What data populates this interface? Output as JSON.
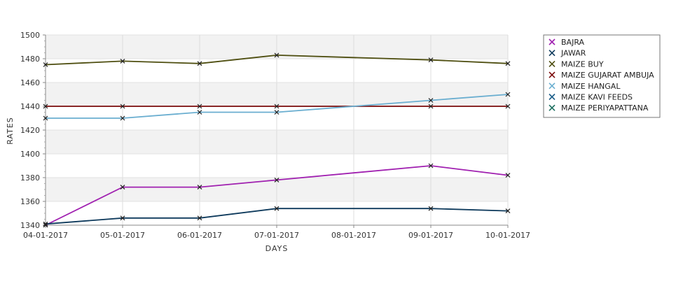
{
  "chart_data": {
    "type": "line",
    "xlabel": "DAYS",
    "ylabel": "RATES",
    "ylim": [
      1340,
      1500
    ],
    "yticks": [
      1340,
      1360,
      1380,
      1400,
      1420,
      1440,
      1460,
      1480,
      1500
    ],
    "x": [
      "04-01-2017",
      "05-01-2017",
      "06-01-2017",
      "07-01-2017",
      "08-01-2017",
      "09-01-2017",
      "10-01-2017"
    ],
    "grid": true,
    "legend_position": "right",
    "series": [
      {
        "name": "BAJRA",
        "color": "#a020b0",
        "points": [
          [
            0,
            1340
          ],
          [
            1,
            1372
          ],
          [
            2,
            1372
          ],
          [
            3,
            1378
          ],
          [
            5,
            1390
          ],
          [
            6,
            1382
          ]
        ]
      },
      {
        "name": "JAWAR",
        "color": "#0e3a5c",
        "points": [
          [
            0,
            1341
          ],
          [
            1,
            1346
          ],
          [
            2,
            1346
          ],
          [
            3,
            1354
          ],
          [
            5,
            1354
          ],
          [
            6,
            1352
          ]
        ]
      },
      {
        "name": "MAIZE BUY",
        "color": "#4e4e10",
        "points": [
          [
            0,
            1475
          ],
          [
            1,
            1478
          ],
          [
            2,
            1476
          ],
          [
            3,
            1483
          ],
          [
            5,
            1479
          ],
          [
            6,
            1476
          ]
        ]
      },
      {
        "name": "MAIZE GUJARAT AMBUJA",
        "color": "#7a0a0a",
        "points": [
          [
            0,
            1440
          ],
          [
            1,
            1440
          ],
          [
            2,
            1440
          ],
          [
            3,
            1440
          ],
          [
            5,
            1440
          ],
          [
            6,
            1440
          ]
        ]
      },
      {
        "name": "MAIZE HANGAL",
        "color": "#6aaed0",
        "points": [
          [
            0,
            1430
          ],
          [
            1,
            1430
          ],
          [
            2,
            1435
          ],
          [
            3,
            1435
          ],
          [
            5,
            1445
          ],
          [
            6,
            1450
          ]
        ]
      },
      {
        "name": "MAIZE KAVI FEEDS",
        "color": "#1e5f8a",
        "points": []
      },
      {
        "name": "MAIZE PERIYAPATTANA",
        "color": "#1a6e5e",
        "points": []
      }
    ]
  }
}
